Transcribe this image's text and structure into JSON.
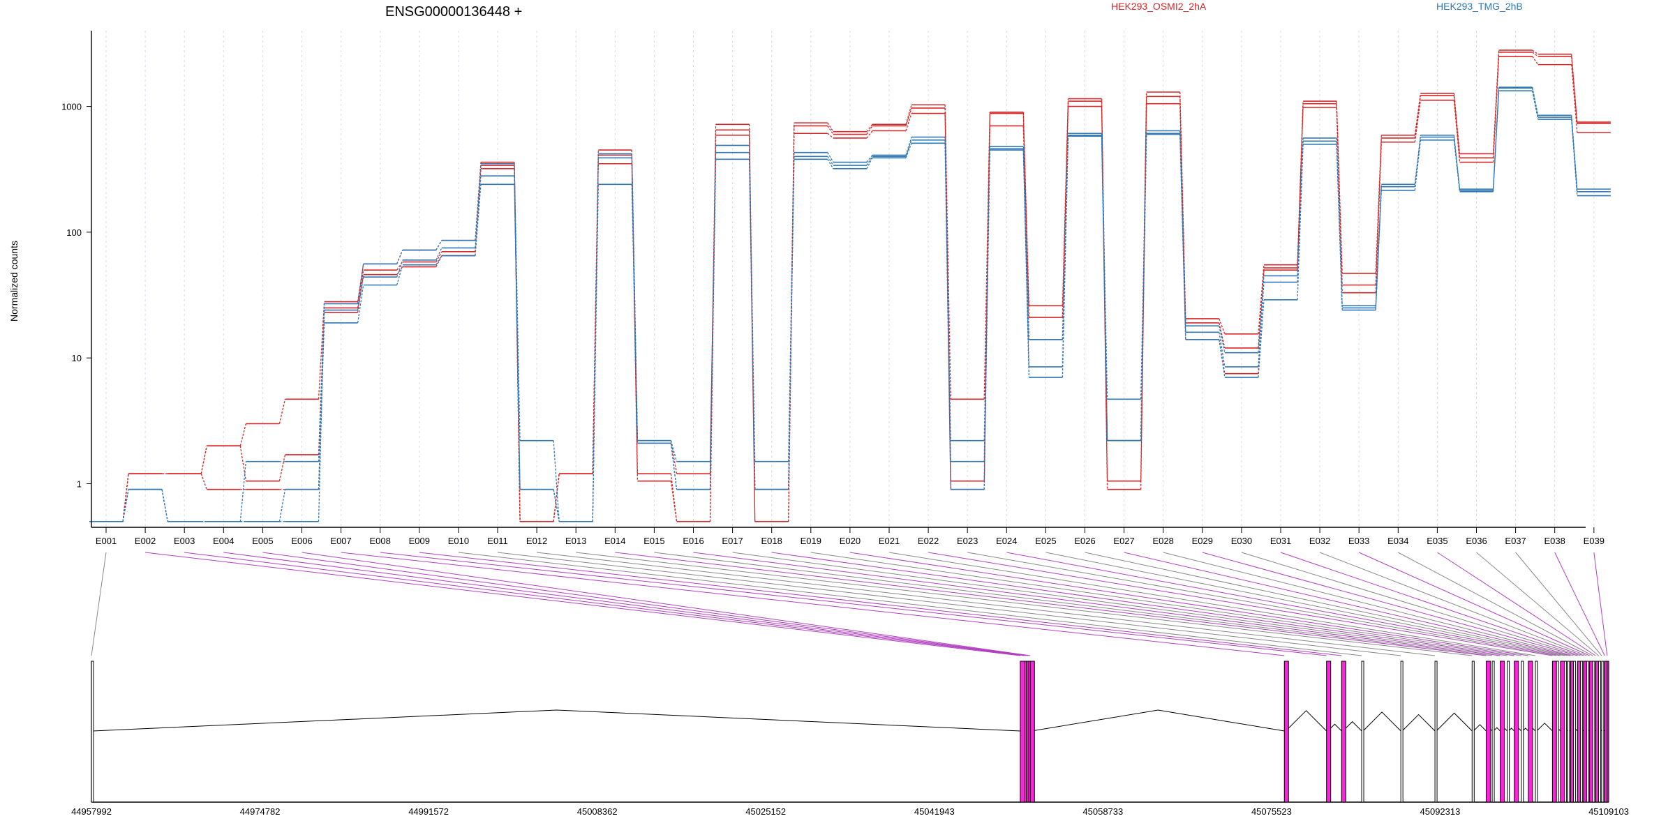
{
  "chart_data": {
    "type": "line",
    "title": "ENSG00000136448 +",
    "ylabel": "Normalized counts",
    "yscale": "log",
    "ylim": [
      0.45,
      4000
    ],
    "yticks": [
      1,
      10,
      100,
      1000
    ],
    "ytick_labels": [
      "1",
      "10",
      "100",
      "1000"
    ],
    "categories": [
      "E001",
      "E002",
      "E003",
      "E004",
      "E005",
      "E006",
      "E007",
      "E008",
      "E009",
      "E010",
      "E011",
      "E012",
      "E013",
      "E014",
      "E015",
      "E016",
      "E017",
      "E018",
      "E019",
      "E020",
      "E021",
      "E022",
      "E023",
      "E024",
      "E025",
      "E026",
      "E027",
      "E028",
      "E029",
      "E030",
      "E031",
      "E032",
      "E033",
      "E034",
      "E035",
      "E036",
      "E037",
      "E038",
      "E039"
    ],
    "legend": [
      {
        "label": "HEK293_OSMI2_2hA",
        "color": "#d62728"
      },
      {
        "label": "HEK293_TMG_2hB",
        "color": "#2f78b5"
      }
    ],
    "series": [
      {
        "color": "#d62728",
        "values": [
          0.5,
          1.2,
          1.2,
          2.0,
          3.0,
          4.7,
          28,
          56,
          72,
          86,
          360,
          0.5,
          1.2,
          450,
          2.2,
          1.2,
          720,
          0.9,
          740,
          630,
          720,
          1030,
          4.7,
          900,
          26,
          1150,
          2.2,
          1300,
          20.5,
          15.5,
          55,
          1100,
          47,
          590,
          1270,
          420,
          2800,
          2600,
          750
        ]
      },
      {
        "color": "#d62728",
        "values": [
          0.5,
          1.2,
          1.2,
          2.0,
          1.05,
          1.7,
          25,
          50,
          58,
          70,
          340,
          0.5,
          1.2,
          410,
          1.2,
          0.5,
          650,
          0.5,
          700,
          600,
          700,
          970,
          1.05,
          880,
          21,
          1100,
          1.05,
          1200,
          19,
          12,
          52,
          1050,
          38,
          560,
          1220,
          390,
          2700,
          2500,
          730
        ]
      },
      {
        "color": "#d62728",
        "values": [
          0.5,
          1.2,
          1.2,
          0.9,
          0.9,
          0.9,
          23,
          46,
          53,
          65,
          320,
          0.5,
          1.2,
          350,
          1.05,
          0.5,
          590,
          0.5,
          610,
          560,
          640,
          880,
          0.9,
          700,
          14,
          1000,
          0.9,
          1050,
          14,
          7.5,
          50,
          980,
          33,
          520,
          1120,
          360,
          2500,
          2150,
          620
        ]
      },
      {
        "color": "#2f78b5",
        "values": [
          0.5,
          0.9,
          0.5,
          0.5,
          0.5,
          0.5,
          27,
          56,
          72,
          86,
          350,
          2.2,
          0.5,
          420,
          2.2,
          1.5,
          490,
          1.5,
          430,
          360,
          410,
          570,
          2.2,
          480,
          14,
          610,
          4.7,
          640,
          18,
          11,
          45,
          560,
          26,
          240,
          590,
          220,
          1420,
          850,
          220
        ]
      },
      {
        "color": "#2f78b5",
        "values": [
          0.5,
          0.9,
          0.5,
          0.5,
          1.5,
          1.5,
          24,
          44,
          60,
          75,
          280,
          0.9,
          0.5,
          390,
          2.1,
          0.9,
          430,
          0.9,
          400,
          340,
          400,
          540,
          1.5,
          460,
          8.5,
          590,
          2.2,
          610,
          16,
          8.5,
          40,
          530,
          25,
          230,
          570,
          215,
          1400,
          820,
          210
        ]
      },
      {
        "color": "#2f78b5",
        "values": [
          0.5,
          0.9,
          0.5,
          0.5,
          0.5,
          0.9,
          19,
          38,
          55,
          65,
          240,
          0.9,
          0.5,
          240,
          2.1,
          0.9,
          380,
          0.9,
          380,
          320,
          390,
          510,
          0.9,
          450,
          7.0,
          580,
          2.2,
          600,
          14,
          7.0,
          29,
          500,
          24,
          215,
          540,
          210,
          1330,
          790,
          195
        ]
      }
    ],
    "exon_model": {
      "coord_labels": [
        "44957992",
        "44974782",
        "44991572",
        "45008362",
        "45025152",
        "45041943",
        "45058733",
        "45075523",
        "45092313",
        "45109103"
      ],
      "genome_start": 44957992,
      "genome_end": 45109103,
      "exon_starts": [
        44957992,
        45050500,
        45050900,
        45051100,
        45051300,
        45051500,
        45076800,
        45081000,
        45082500,
        45084500,
        45088400,
        45091800,
        45095500,
        45096900,
        45097500,
        45098300,
        45099000,
        45099700,
        45100400,
        45101100,
        45101800,
        45103500,
        45103900,
        45104300,
        45104700,
        45105000,
        45105300,
        45105600,
        45106000,
        45106300,
        45106600,
        45106900,
        45107200,
        45107500,
        45107800,
        45108100,
        45108400,
        45108700,
        45108950
      ],
      "highlighted_exons": [
        "E002",
        "E003",
        "E004",
        "E005",
        "E006",
        "E007",
        "E008",
        "E009",
        "E014",
        "E016",
        "E018",
        "E020",
        "E022",
        "E024",
        "E027",
        "E029",
        "E031",
        "E033",
        "E035",
        "E038",
        "E039"
      ],
      "highlight_color": "#ff22dd",
      "intron_color": "#000000",
      "connector_color": "#888888"
    }
  }
}
